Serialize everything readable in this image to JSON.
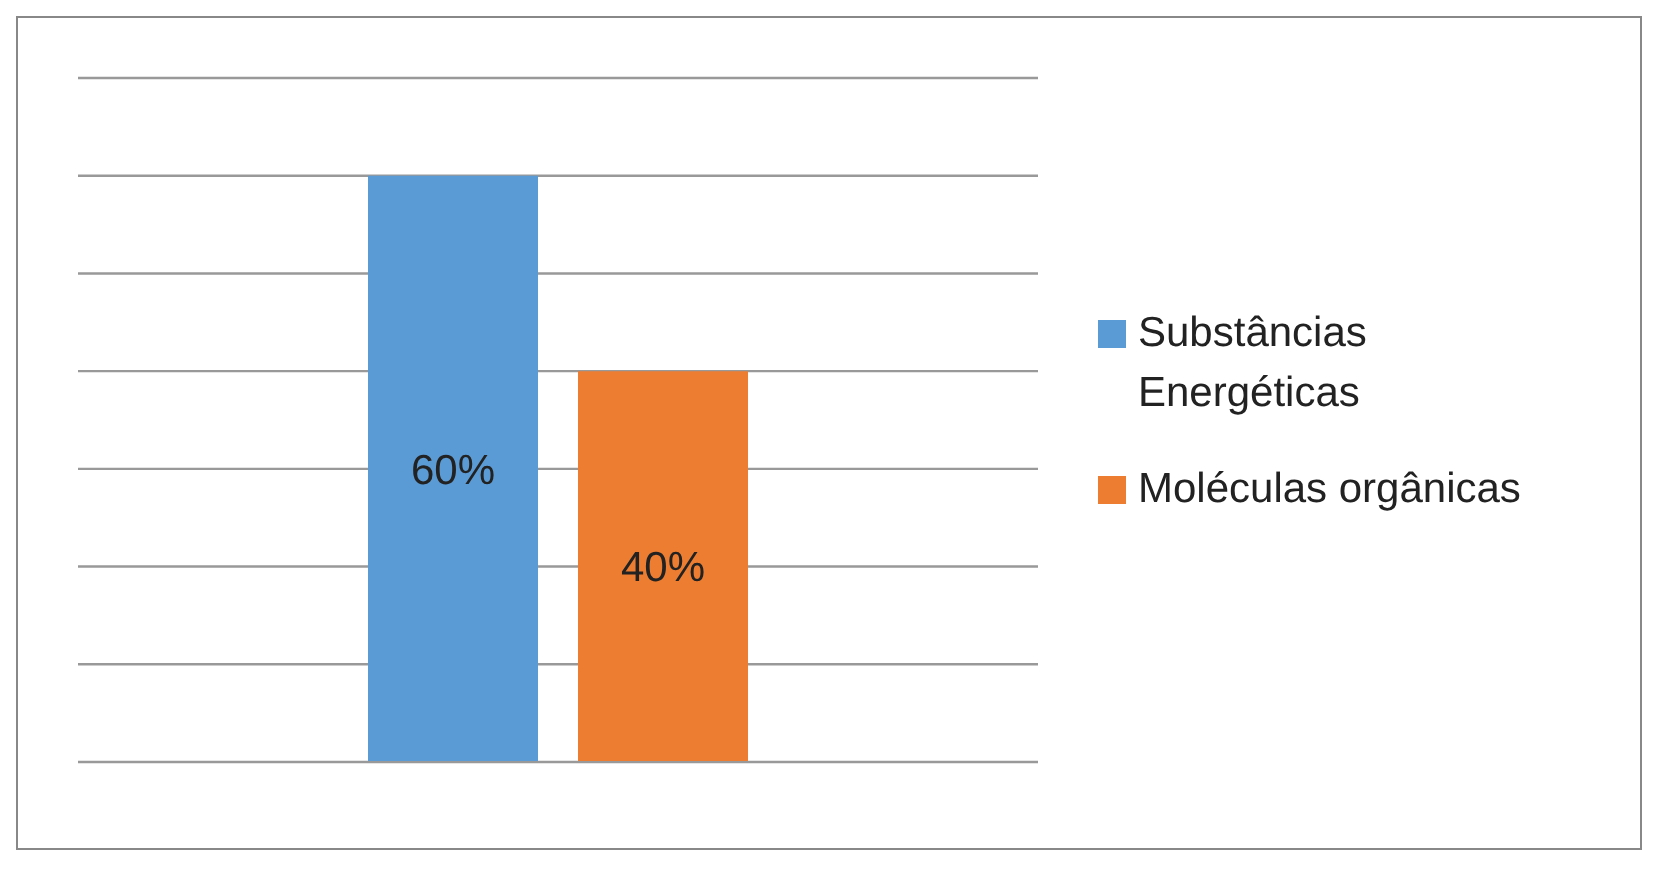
{
  "chart_data": {
    "type": "bar",
    "categories": [
      null
    ],
    "series": [
      {
        "name": "Substâncias Energéticas",
        "color": "#5b9bd5",
        "values": [
          60
        ],
        "value_labels": [
          "60%"
        ]
      },
      {
        "name": "Moléculas orgânicas",
        "color": "#ed7d31",
        "values": [
          40
        ],
        "value_labels": [
          "40%"
        ]
      }
    ],
    "ylim": [
      0,
      70
    ],
    "tick_labels": false,
    "grid": "y",
    "legend": "right"
  }
}
